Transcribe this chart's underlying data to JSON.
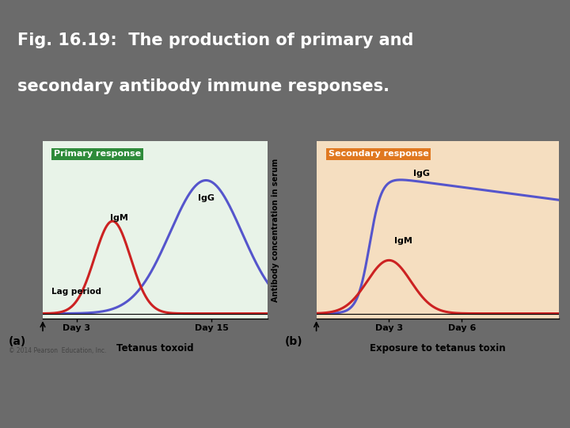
{
  "title_line1": "Fig. 16.19:  The production of primary and",
  "title_line2": "secondary antibody immune responses.",
  "title_bg": "#7BAED4",
  "title_color": "#FFFFFF",
  "title_fontsize": 15,
  "panel_a_bg": "#E8F3E8",
  "panel_b_bg": "#F5DEC0",
  "outer_bg": "#6B6B6B",
  "white_panel_bg": "#FFFFFF",
  "primary_label": "Primary response",
  "primary_label_bg": "#2E8B3A",
  "primary_label_color": "#FFFFFF",
  "secondary_label": "Secondary response",
  "secondary_label_bg": "#E07820",
  "secondary_label_color": "#FFFFFF",
  "IgG_color": "#5555CC",
  "IgM_color": "#CC2222",
  "ylabel": "Antibody concentration in serum",
  "panel_a_xlabel": "Tetanus toxoid",
  "panel_a_xticks": [
    "Day 3",
    "Day 15"
  ],
  "panel_a_lag_label": "Lag period",
  "panel_b_xlabel": "Exposure to tetanus toxin",
  "panel_b_xticks": [
    "Day 3",
    "Day 6"
  ],
  "caption_a": "(a)",
  "caption_b": "(b)",
  "copyright": "© 2014 Pearson  Education, Inc."
}
